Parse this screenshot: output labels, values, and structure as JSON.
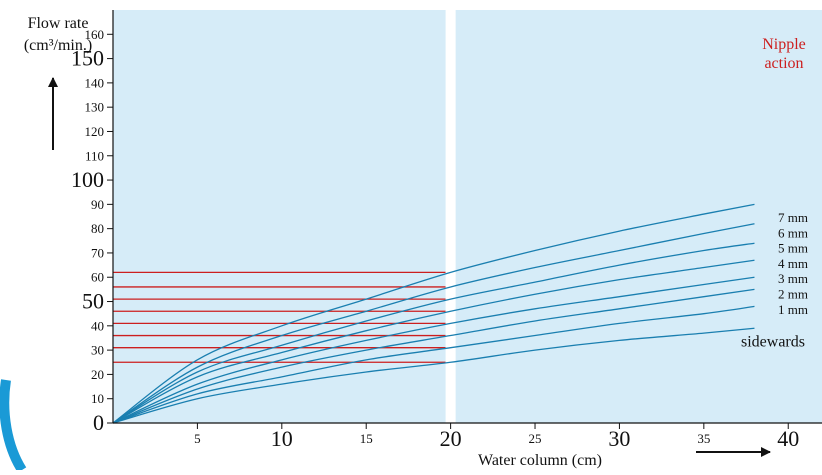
{
  "chart_data": {
    "type": "line",
    "ylabel_line1": "Flow rate",
    "ylabel_line2": "(cm³/min.)",
    "xlabel": "Water column (cm)",
    "annotation_line1": "Nipple",
    "annotation_line2": "action",
    "xlim": [
      0,
      42
    ],
    "ylim": [
      0,
      170
    ],
    "x_ticks": [
      5,
      10,
      15,
      20,
      25,
      30,
      35,
      40
    ],
    "x_tick_labels": [
      "5",
      "10",
      "15",
      "20",
      "25",
      "30",
      "35",
      "40"
    ],
    "y_ticks": [
      0,
      10,
      20,
      30,
      40,
      50,
      60,
      70,
      80,
      90,
      100,
      110,
      120,
      130,
      140,
      150,
      160
    ],
    "y_tick_labels": [
      "0",
      "10",
      "20",
      "30",
      "40",
      "50",
      "60",
      "70",
      "80",
      "90",
      "100",
      "110",
      "120",
      "130",
      "140",
      "150",
      "160"
    ],
    "marker_x": 20,
    "series": [
      {
        "name": "7 mm",
        "x": [
          0,
          5,
          10,
          15,
          20,
          25,
          30,
          35,
          38
        ],
        "values": [
          0,
          26,
          40,
          51,
          62,
          71,
          79,
          86,
          90
        ]
      },
      {
        "name": "6 mm",
        "x": [
          0,
          5,
          10,
          15,
          20,
          25,
          30,
          35,
          38
        ],
        "values": [
          0,
          23,
          36,
          46,
          56,
          64,
          71,
          78,
          82
        ]
      },
      {
        "name": "5 mm",
        "x": [
          0,
          5,
          10,
          15,
          20,
          25,
          30,
          35,
          38
        ],
        "values": [
          0,
          21,
          32,
          42,
          51,
          58,
          65,
          71,
          74
        ]
      },
      {
        "name": "4 mm",
        "x": [
          0,
          5,
          10,
          15,
          20,
          25,
          30,
          35,
          38
        ],
        "values": [
          0,
          19,
          29,
          38,
          46,
          53,
          59,
          64,
          67
        ]
      },
      {
        "name": "3 mm",
        "x": [
          0,
          5,
          10,
          15,
          20,
          25,
          30,
          35,
          38
        ],
        "values": [
          0,
          16,
          26,
          34,
          41,
          47,
          52,
          57,
          60
        ]
      },
      {
        "name": "2 mm",
        "x": [
          0,
          5,
          10,
          15,
          20,
          25,
          30,
          35,
          38
        ],
        "values": [
          0,
          14,
          23,
          30,
          36,
          42,
          47,
          52,
          55
        ]
      },
      {
        "name": "1 mm",
        "x": [
          0,
          5,
          10,
          15,
          20,
          25,
          30,
          35,
          38
        ],
        "values": [
          0,
          12,
          19,
          26,
          31,
          36,
          41,
          45,
          48
        ]
      },
      {
        "name": "sidewards",
        "x": [
          0,
          5,
          10,
          15,
          20,
          25,
          30,
          35,
          38
        ],
        "values": [
          0,
          10,
          16,
          21,
          25,
          30,
          34,
          37,
          39
        ]
      }
    ]
  },
  "colors": {
    "background": "#d6ecf8",
    "curve": "#1a7fb0",
    "reference": "#cc1f1f",
    "annotation": "#cc1f1f",
    "text": "#111111",
    "stripe": "#ffffff",
    "arc": "#1a9ad6"
  }
}
